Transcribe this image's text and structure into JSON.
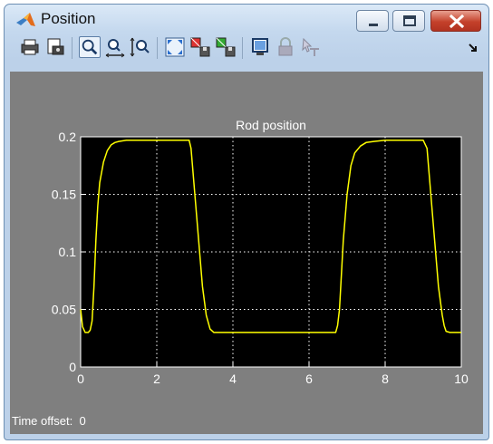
{
  "window": {
    "title": "Position"
  },
  "footer": {
    "label": "Time offset:",
    "value": "0"
  },
  "toolbar": {
    "items": [
      "print-icon",
      "print-preview-icon",
      "zoom-icon",
      "zoom-x-icon",
      "zoom-y-icon",
      "autoscale-icon",
      "save-axes-icon",
      "restore-axes-icon",
      "floating-scope-icon",
      "lock-icon",
      "signal-select-icon",
      "overflow-icon"
    ]
  },
  "chart_data": {
    "type": "line",
    "title": "Rod position",
    "xlabel": "",
    "ylabel": "",
    "xlim": [
      0,
      10
    ],
    "ylim": [
      0,
      0.2
    ],
    "xticks": [
      "0",
      "2",
      "4",
      "6",
      "8",
      "10"
    ],
    "yticks": [
      "0",
      "0.05",
      "0.1",
      "0.15",
      "0.2"
    ],
    "grid": true,
    "colors": {
      "background": "#000000",
      "line": "#ffff00",
      "grid": "#ffffff",
      "frame": "#7f7f7f",
      "text": "#ffffff"
    },
    "series": [
      {
        "x": [
          0,
          0.05,
          0.12,
          0.2,
          0.25,
          0.3,
          0.35,
          0.4,
          0.45,
          0.5,
          0.6,
          0.7,
          0.8,
          0.9,
          1.0,
          1.2,
          1.5,
          2.0,
          2.5,
          2.85,
          2.9,
          2.95,
          3.0,
          3.1,
          3.2,
          3.3,
          3.4,
          3.5,
          4.0,
          5.0,
          6.0,
          6.7,
          6.75,
          6.8,
          6.85,
          6.9,
          7.0,
          7.1,
          7.2,
          7.35,
          7.5,
          7.7,
          8.0,
          8.5,
          9.0,
          9.1,
          9.15,
          9.2,
          9.3,
          9.4,
          9.5,
          9.55,
          9.6,
          9.7,
          10.0
        ],
        "y": [
          0.05,
          0.035,
          0.03,
          0.03,
          0.032,
          0.04,
          0.07,
          0.11,
          0.14,
          0.16,
          0.178,
          0.188,
          0.193,
          0.195,
          0.196,
          0.197,
          0.197,
          0.197,
          0.197,
          0.197,
          0.19,
          0.17,
          0.15,
          0.11,
          0.07,
          0.045,
          0.033,
          0.03,
          0.03,
          0.03,
          0.03,
          0.03,
          0.036,
          0.05,
          0.08,
          0.11,
          0.15,
          0.175,
          0.186,
          0.192,
          0.195,
          0.196,
          0.197,
          0.197,
          0.197,
          0.19,
          0.17,
          0.15,
          0.11,
          0.07,
          0.045,
          0.036,
          0.031,
          0.03,
          0.03
        ]
      }
    ]
  }
}
